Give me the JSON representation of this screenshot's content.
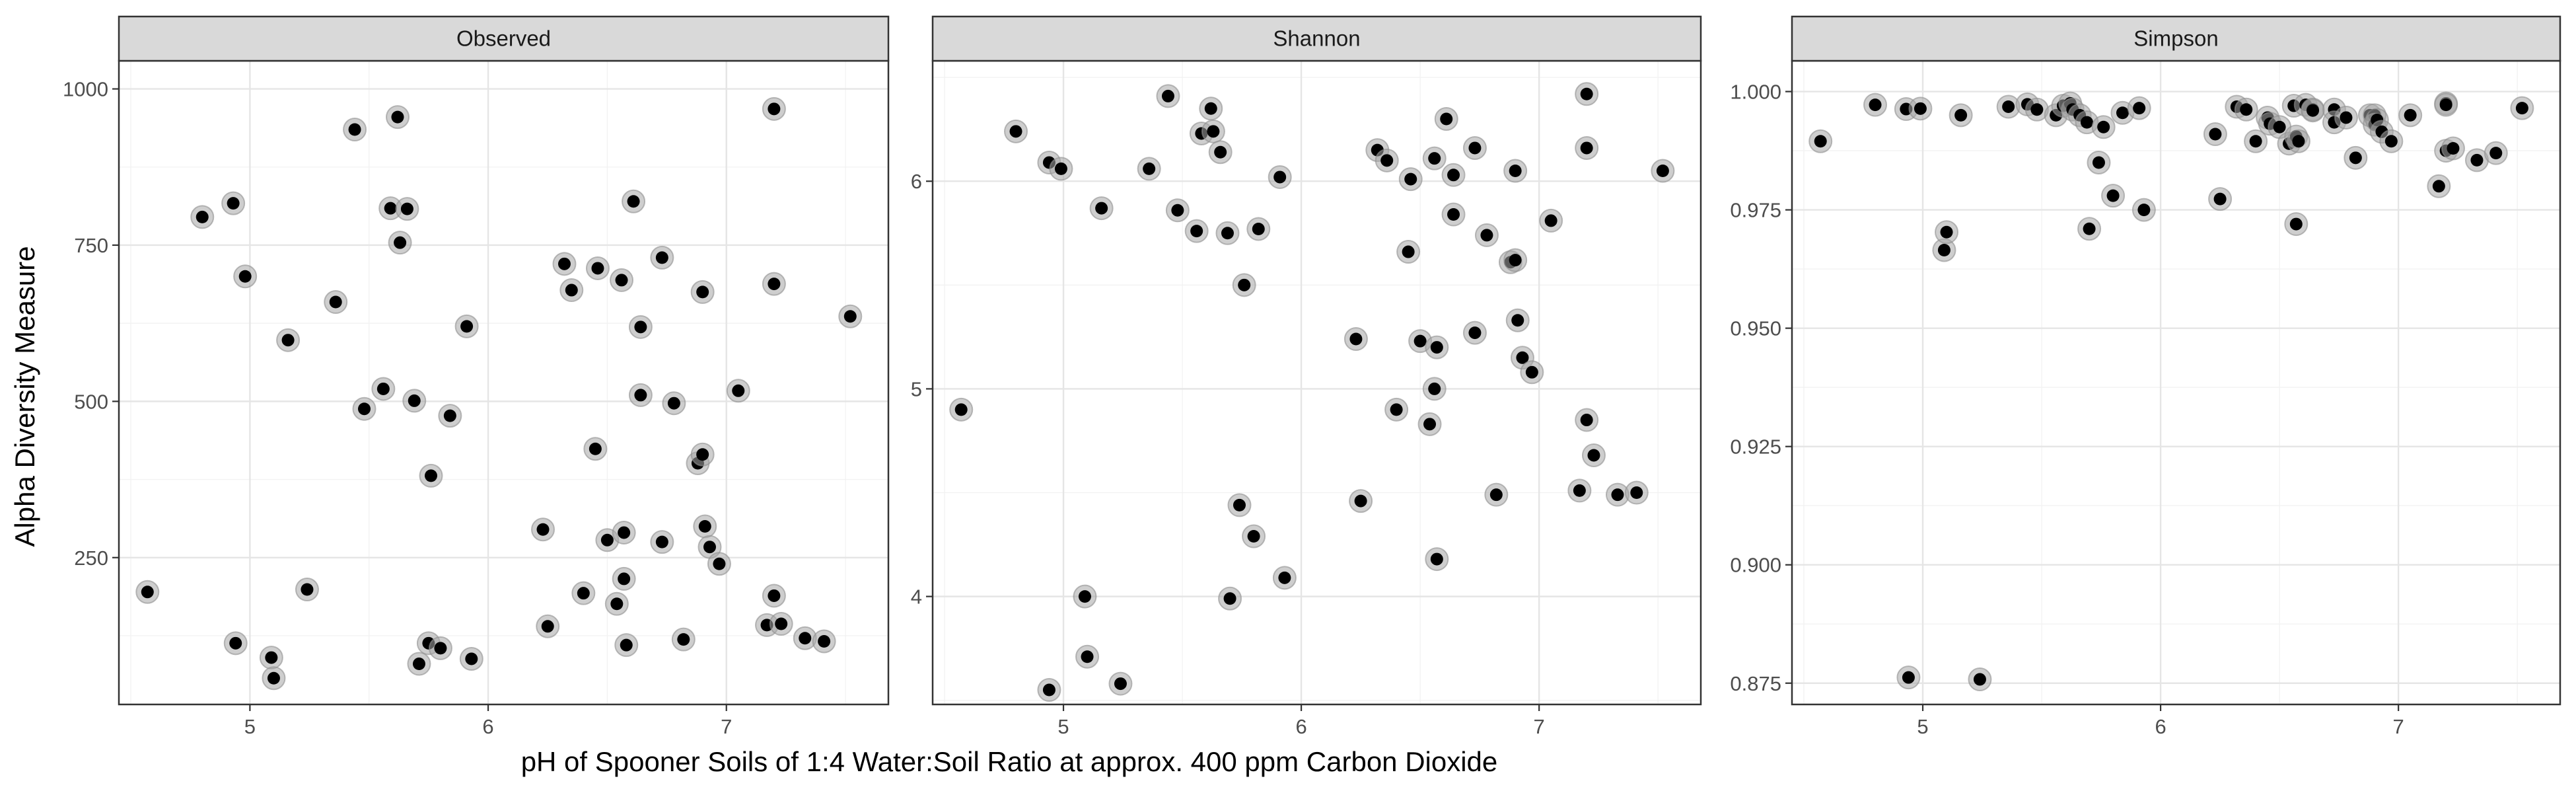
{
  "chart_data": {
    "type": "scatter",
    "xlabel": "pH of Spooner Soils of 1:4 Water:Soil Ratio at approx. 400 ppm Carbon Dioxide",
    "ylabel": "Alpha Diversity Measure",
    "xlim": [
      4.45,
      7.68
    ],
    "x_ticks": [
      5,
      6,
      7
    ],
    "x_tick_labels": [
      "5",
      "6",
      "7"
    ],
    "grid": true,
    "colors": {
      "strip": "#d9d9d9",
      "point": "#000000",
      "halo": "#a6a6a6"
    },
    "panels": [
      {
        "title": "Observed",
        "ylim": [
          15,
          1045
        ],
        "y_ticks": [
          250,
          500,
          750,
          1000
        ],
        "y_tick_labels": [
          "250",
          "500",
          "750",
          "1000"
        ],
        "points": [
          [
            4.57,
            195
          ],
          [
            4.8,
            795
          ],
          [
            4.93,
            817
          ],
          [
            4.94,
            113
          ],
          [
            4.98,
            700
          ],
          [
            5.09,
            90
          ],
          [
            5.1,
            57
          ],
          [
            5.16,
            598
          ],
          [
            5.24,
            199
          ],
          [
            5.36,
            659
          ],
          [
            5.44,
            935
          ],
          [
            5.48,
            488
          ],
          [
            5.56,
            520
          ],
          [
            5.59,
            809
          ],
          [
            5.62,
            955
          ],
          [
            5.63,
            754
          ],
          [
            5.66,
            808
          ],
          [
            5.69,
            501
          ],
          [
            5.71,
            80
          ],
          [
            5.75,
            113
          ],
          [
            5.76,
            381
          ],
          [
            5.8,
            105
          ],
          [
            5.84,
            477
          ],
          [
            5.91,
            620
          ],
          [
            5.93,
            88
          ],
          [
            6.23,
            295
          ],
          [
            6.25,
            140
          ],
          [
            6.32,
            720
          ],
          [
            6.35,
            678
          ],
          [
            6.4,
            193
          ],
          [
            6.45,
            424
          ],
          [
            6.46,
            713
          ],
          [
            6.5,
            278
          ],
          [
            6.54,
            176
          ],
          [
            6.56,
            694
          ],
          [
            6.57,
            216
          ],
          [
            6.57,
            290
          ],
          [
            6.58,
            110
          ],
          [
            6.61,
            820
          ],
          [
            6.64,
            619
          ],
          [
            6.64,
            510
          ],
          [
            6.73,
            730
          ],
          [
            6.73,
            275
          ],
          [
            6.78,
            497
          ],
          [
            6.82,
            119
          ],
          [
            6.88,
            401
          ],
          [
            6.9,
            415
          ],
          [
            6.9,
            675
          ],
          [
            6.91,
            300
          ],
          [
            6.93,
            267
          ],
          [
            6.97,
            240
          ],
          [
            7.05,
            517
          ],
          [
            7.17,
            142
          ],
          [
            7.2,
            968
          ],
          [
            7.2,
            688
          ],
          [
            7.2,
            189
          ],
          [
            7.23,
            144
          ],
          [
            7.33,
            121
          ],
          [
            7.41,
            116
          ],
          [
            7.52,
            636
          ]
        ]
      },
      {
        "title": "Shannon",
        "ylim": [
          3.48,
          6.58
        ],
        "y_ticks": [
          4,
          5,
          6
        ],
        "y_tick_labels": [
          "4",
          "5",
          "6"
        ],
        "points": [
          [
            4.57,
            4.9
          ],
          [
            4.8,
            6.24
          ],
          [
            4.94,
            6.09
          ],
          [
            4.94,
            3.55
          ],
          [
            4.99,
            6.06
          ],
          [
            5.09,
            4.0
          ],
          [
            5.1,
            3.71
          ],
          [
            5.16,
            5.87
          ],
          [
            5.24,
            3.58
          ],
          [
            5.36,
            6.06
          ],
          [
            5.44,
            6.41
          ],
          [
            5.48,
            5.86
          ],
          [
            5.56,
            5.76
          ],
          [
            5.58,
            6.23
          ],
          [
            5.62,
            6.35
          ],
          [
            5.63,
            6.24
          ],
          [
            5.66,
            6.14
          ],
          [
            5.69,
            5.75
          ],
          [
            5.7,
            3.99
          ],
          [
            5.74,
            4.44
          ],
          [
            5.76,
            5.5
          ],
          [
            5.8,
            4.29
          ],
          [
            5.82,
            5.77
          ],
          [
            5.91,
            6.02
          ],
          [
            5.93,
            4.09
          ],
          [
            6.23,
            5.24
          ],
          [
            6.25,
            4.46
          ],
          [
            6.32,
            6.15
          ],
          [
            6.36,
            6.1
          ],
          [
            6.4,
            4.9
          ],
          [
            6.45,
            5.66
          ],
          [
            6.46,
            6.01
          ],
          [
            6.5,
            5.23
          ],
          [
            6.54,
            4.83
          ],
          [
            6.56,
            5.0
          ],
          [
            6.56,
            6.11
          ],
          [
            6.57,
            5.2
          ],
          [
            6.57,
            4.18
          ],
          [
            6.61,
            6.3
          ],
          [
            6.64,
            5.84
          ],
          [
            6.64,
            6.03
          ],
          [
            6.73,
            6.16
          ],
          [
            6.73,
            5.27
          ],
          [
            6.78,
            5.74
          ],
          [
            6.82,
            4.49
          ],
          [
            6.88,
            5.61
          ],
          [
            6.9,
            5.62
          ],
          [
            6.9,
            6.05
          ],
          [
            6.91,
            5.33
          ],
          [
            6.93,
            5.15
          ],
          [
            6.97,
            5.08
          ],
          [
            7.05,
            5.81
          ],
          [
            7.17,
            4.51
          ],
          [
            7.2,
            6.42
          ],
          [
            7.2,
            6.16
          ],
          [
            7.2,
            4.85
          ],
          [
            7.23,
            4.68
          ],
          [
            7.33,
            4.49
          ],
          [
            7.41,
            4.5
          ],
          [
            7.52,
            6.05
          ]
        ]
      },
      {
        "title": "Simpson",
        "ylim": [
          0.8705,
          1.0065
        ],
        "y_ticks": [
          0.875,
          0.9,
          0.925,
          0.95,
          0.975,
          1.0
        ],
        "y_tick_labels": [
          "0.875",
          "0.900",
          "0.925",
          "0.950",
          "0.975",
          "1.000"
        ],
        "points": [
          [
            4.57,
            0.9895
          ],
          [
            4.8,
            0.9972
          ],
          [
            4.93,
            0.9963
          ],
          [
            4.94,
            0.8762
          ],
          [
            4.99,
            0.9964
          ],
          [
            5.09,
            0.9665
          ],
          [
            5.1,
            0.9703
          ],
          [
            5.16,
            0.995
          ],
          [
            5.24,
            0.8758
          ],
          [
            5.36,
            0.9968
          ],
          [
            5.44,
            0.9973
          ],
          [
            5.48,
            0.9962
          ],
          [
            5.56,
            0.995
          ],
          [
            5.59,
            0.997
          ],
          [
            5.62,
            0.9975
          ],
          [
            5.63,
            0.9962
          ],
          [
            5.66,
            0.995
          ],
          [
            5.69,
            0.9935
          ],
          [
            5.7,
            0.971
          ],
          [
            5.74,
            0.985
          ],
          [
            5.76,
            0.9925
          ],
          [
            5.8,
            0.978
          ],
          [
            5.84,
            0.9955
          ],
          [
            5.91,
            0.9965
          ],
          [
            5.93,
            0.975
          ],
          [
            6.23,
            0.991
          ],
          [
            6.25,
            0.9773
          ],
          [
            6.32,
            0.9968
          ],
          [
            6.36,
            0.9962
          ],
          [
            6.4,
            0.9895
          ],
          [
            6.45,
            0.9945
          ],
          [
            6.46,
            0.9932
          ],
          [
            6.5,
            0.9925
          ],
          [
            6.54,
            0.989
          ],
          [
            6.56,
            0.997
          ],
          [
            6.57,
            0.972
          ],
          [
            6.57,
            0.9905
          ],
          [
            6.58,
            0.9895
          ],
          [
            6.61,
            0.9972
          ],
          [
            6.64,
            0.9962
          ],
          [
            6.64,
            0.996
          ],
          [
            6.73,
            0.9962
          ],
          [
            6.73,
            0.9935
          ],
          [
            6.78,
            0.9945
          ],
          [
            6.82,
            0.986
          ],
          [
            6.88,
            0.995
          ],
          [
            6.9,
            0.995
          ],
          [
            6.9,
            0.993
          ],
          [
            6.91,
            0.994
          ],
          [
            6.93,
            0.9915
          ],
          [
            6.97,
            0.9895
          ],
          [
            7.05,
            0.995
          ],
          [
            7.17,
            0.98
          ],
          [
            7.2,
            0.9975
          ],
          [
            7.2,
            0.9972
          ],
          [
            7.2,
            0.9875
          ],
          [
            7.23,
            0.988
          ],
          [
            7.33,
            0.9855
          ],
          [
            7.41,
            0.987
          ],
          [
            7.52,
            0.9965
          ]
        ]
      }
    ]
  }
}
